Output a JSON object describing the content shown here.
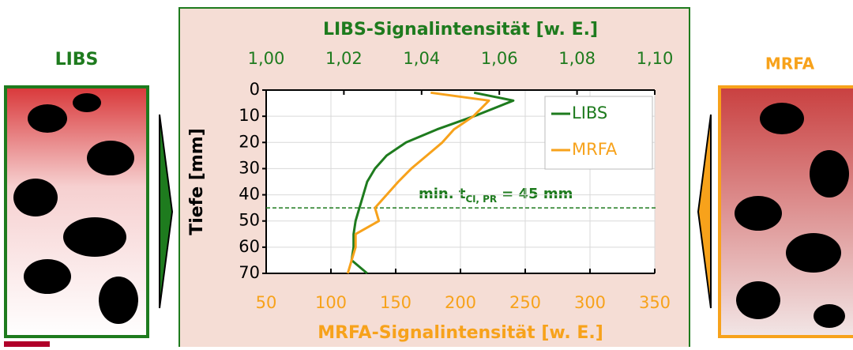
{
  "chart_data": {
    "type": "line",
    "left_label": "LIBS",
    "right_label": "MRFA",
    "x2_title": "LIBS-Signalintensität [w. E.]",
    "x_title": "MRFA-Signalintensität [w. E.]",
    "y_title": "Tiefe [mm]",
    "annotation": {
      "text": "min. t",
      "subscript": "Cl, PR",
      "suffix": "= 45 mm",
      "value": 45
    },
    "x2lim": [
      1.0,
      1.1
    ],
    "x2ticks": [
      {
        "value": 1.0,
        "label": "1,00"
      },
      {
        "value": 1.02,
        "label": "1,02"
      },
      {
        "value": 1.04,
        "label": "1,04"
      },
      {
        "value": 1.06,
        "label": "1,06"
      },
      {
        "value": 1.08,
        "label": "1,08"
      },
      {
        "value": 1.1,
        "label": "1,10"
      }
    ],
    "xlim": [
      50,
      350
    ],
    "xticks": [
      50,
      100,
      150,
      200,
      250,
      300,
      350
    ],
    "ylim": [
      0,
      70
    ],
    "yticks": [
      0,
      10,
      20,
      30,
      40,
      50,
      60,
      70
    ],
    "y_inverted": true,
    "grid": true,
    "y": [
      1,
      4,
      10,
      15,
      20,
      25,
      30,
      35,
      40,
      45,
      50,
      55,
      60,
      65,
      70
    ],
    "series": [
      {
        "name": "LIBS",
        "color": "#1e7b1e",
        "axis": "x2",
        "values": [
          1.0535,
          1.0636,
          1.0535,
          1.044,
          1.036,
          1.031,
          1.028,
          1.026,
          1.025,
          1.024,
          1.023,
          1.0225,
          1.0225,
          1.022,
          1.026
        ]
      },
      {
        "name": "MRFA",
        "color": "#f7a21b",
        "axis": "x",
        "values": [
          177,
          222,
          210,
          195,
          186,
          174,
          162,
          152,
          143,
          134,
          137,
          119,
          119,
          116,
          113
        ]
      }
    ]
  }
}
